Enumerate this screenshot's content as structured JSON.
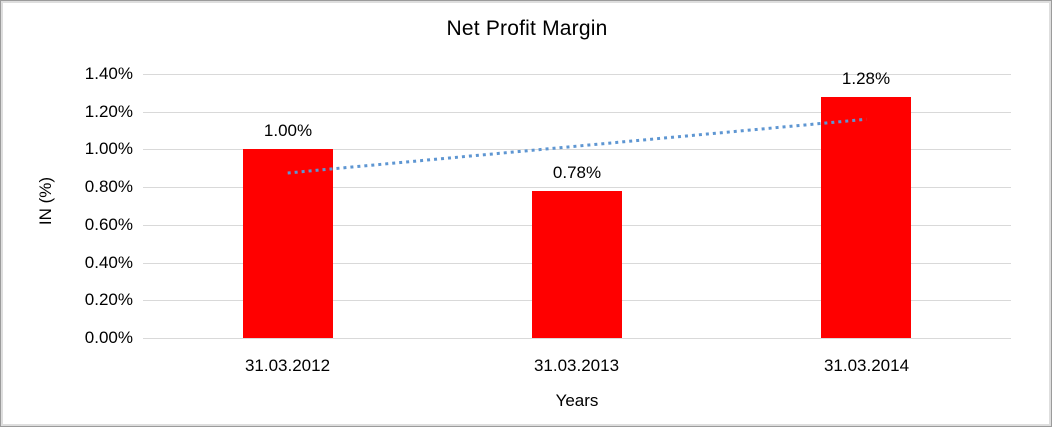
{
  "chart_data": {
    "type": "bar",
    "title": "Net Profit Margin",
    "xlabel": "Years",
    "ylabel": "IN (%)",
    "categories": [
      "31.03.2012",
      "31.03.2013",
      "31.03.2014"
    ],
    "values": [
      1.0,
      0.78,
      1.28
    ],
    "data_labels": [
      "1.00%",
      "0.78%",
      "1.28%"
    ],
    "ylim": [
      0,
      1.4
    ],
    "ytick_step": 0.2,
    "ytick_labels": [
      "0.00%",
      "0.20%",
      "0.40%",
      "0.60%",
      "0.80%",
      "1.00%",
      "1.20%",
      "1.40%"
    ],
    "grid": true,
    "legend": "none",
    "bar_color": "#ff0000",
    "gridline_color": "#d9d9d9",
    "text_color": "#000000",
    "trendline": {
      "style": "dotted",
      "color": "#5e96d2",
      "start_value": 0.875,
      "end_value": 1.16
    }
  }
}
